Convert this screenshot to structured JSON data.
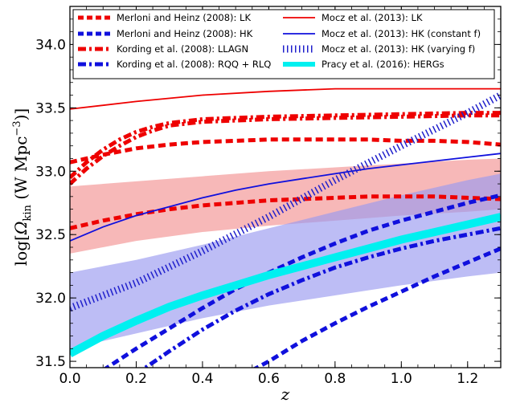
{
  "chart_data": {
    "type": "line",
    "xlabel": "z",
    "ylabel_parts": {
      "prefix": "log[",
      "symbol": "Ω",
      "sub": "kin",
      "mid": " (W Mpc",
      "sup": "−3",
      "suffix": ")]"
    },
    "xlim": [
      0.0,
      1.3
    ],
    "ylim": [
      31.45,
      34.3
    ],
    "x_ticks": [
      0.0,
      0.2,
      0.4,
      0.6,
      0.8,
      1.0,
      1.2
    ],
    "x_tick_labels": [
      "0.0",
      "0.2",
      "0.4",
      "0.6",
      "0.8",
      "1.0",
      "1.2"
    ],
    "y_ticks": [
      31.5,
      32.0,
      32.5,
      33.0,
      33.5,
      34.0
    ],
    "y_tick_labels": [
      "31.5",
      "32.0",
      "32.5",
      "33.0",
      "33.5",
      "34.0"
    ],
    "legend": {
      "left": [
        "Merloni and Heinz (2008): LK",
        "Merloni and Heinz (2008): HK",
        "Kording et al. (2008): LLAGN",
        "Kording et al. (2008): RQQ + RLQ"
      ],
      "right": [
        "Mocz et al. (2013): LK",
        "Mocz et al. (2013): HK (constant f)",
        "Mocz et al. (2013): HK (varying f)",
        "Pracy et al. (2016): HERGs"
      ]
    },
    "bands": [
      {
        "name": "red band",
        "color": "#f4a0a0",
        "opacity": 0.75,
        "x": [
          0.0,
          0.2,
          0.4,
          0.6,
          0.8,
          1.0,
          1.2,
          1.3
        ],
        "upper": [
          32.88,
          32.92,
          32.96,
          33.0,
          33.03,
          33.06,
          33.09,
          33.1
        ],
        "lower": [
          32.35,
          32.45,
          32.52,
          32.57,
          32.61,
          32.65,
          32.68,
          32.7
        ]
      },
      {
        "name": "blue band",
        "color": "#9a9af0",
        "opacity": 0.65,
        "x": [
          0.0,
          0.2,
          0.4,
          0.6,
          0.8,
          1.0,
          1.2,
          1.3
        ],
        "upper": [
          32.2,
          32.3,
          32.42,
          32.55,
          32.68,
          32.81,
          32.93,
          32.98
        ],
        "lower": [
          31.6,
          31.72,
          31.84,
          31.94,
          32.02,
          32.1,
          32.17,
          32.2
        ]
      }
    ],
    "series": [
      {
        "name": "Merloni and Heinz (2008): LK",
        "color": "#ee0000",
        "style": "dashed",
        "width": 5,
        "x": [
          0.0,
          0.1,
          0.2,
          0.3,
          0.4,
          0.5,
          0.6,
          0.7,
          0.8,
          0.9,
          1.0,
          1.1,
          1.2,
          1.3
        ],
        "y": [
          32.55,
          32.61,
          32.66,
          32.7,
          32.73,
          32.75,
          32.77,
          32.78,
          32.79,
          32.8,
          32.8,
          32.8,
          32.79,
          32.78
        ]
      },
      {
        "name": "Merloni and Heinz (2008): LK (upper)",
        "color": "#ee0000",
        "style": "dashed",
        "width": 5,
        "x": [
          0.0,
          0.1,
          0.2,
          0.3,
          0.4,
          0.5,
          0.6,
          0.7,
          0.8,
          0.9,
          1.0,
          1.1,
          1.2,
          1.3
        ],
        "y": [
          33.07,
          33.13,
          33.18,
          33.21,
          33.23,
          33.24,
          33.25,
          33.25,
          33.25,
          33.25,
          33.24,
          33.24,
          33.23,
          33.21
        ]
      },
      {
        "name": "Merloni and Heinz (2008): HK",
        "color": "#1010dd",
        "style": "dashed",
        "width": 5,
        "x": [
          0.1,
          0.2,
          0.3,
          0.4,
          0.5,
          0.6,
          0.7,
          0.8,
          0.9,
          1.0,
          1.1,
          1.2,
          1.3
        ],
        "y": [
          31.43,
          31.6,
          31.76,
          31.92,
          32.07,
          32.2,
          32.32,
          32.43,
          32.53,
          32.61,
          32.68,
          32.75,
          32.81
        ]
      },
      {
        "name": "Merloni and Heinz (2008): HK (lower)",
        "color": "#1010dd",
        "style": "dashed",
        "width": 5,
        "x": [
          0.55,
          0.6,
          0.7,
          0.8,
          0.9,
          1.0,
          1.1,
          1.2,
          1.3
        ],
        "y": [
          31.43,
          31.5,
          31.66,
          31.8,
          31.93,
          32.05,
          32.17,
          32.28,
          32.39
        ]
      },
      {
        "name": "Kording et al. (2008): LLAGN",
        "color": "#ee0000",
        "style": "dashdot",
        "width": 5,
        "x": [
          0.0,
          0.05,
          0.1,
          0.15,
          0.2,
          0.25,
          0.3,
          0.4,
          0.5,
          0.6,
          0.8,
          1.0,
          1.2,
          1.3
        ],
        "y": [
          32.9,
          33.02,
          33.12,
          33.2,
          33.27,
          33.32,
          33.36,
          33.39,
          33.4,
          33.41,
          33.42,
          33.43,
          33.44,
          33.44
        ]
      },
      {
        "name": "Kording et al. (2008): LLAGN (upper)",
        "color": "#ee0000",
        "style": "dashdot",
        "width": 5,
        "x": [
          0.0,
          0.05,
          0.1,
          0.15,
          0.2,
          0.25,
          0.3,
          0.4,
          0.5,
          0.6,
          0.8,
          1.0,
          1.2,
          1.3
        ],
        "y": [
          32.95,
          33.07,
          33.17,
          33.25,
          33.31,
          33.35,
          33.38,
          33.41,
          33.42,
          33.43,
          33.44,
          33.45,
          33.46,
          33.46
        ]
      },
      {
        "name": "Kording et al. (2008): RQQ + RLQ",
        "color": "#1010dd",
        "style": "dashdot",
        "width": 5,
        "x": [
          0.2,
          0.3,
          0.4,
          0.5,
          0.6,
          0.7,
          0.8,
          0.9,
          1.0,
          1.1,
          1.2,
          1.3
        ],
        "y": [
          31.4,
          31.58,
          31.75,
          31.9,
          32.03,
          32.14,
          32.24,
          32.32,
          32.39,
          32.45,
          32.5,
          32.55
        ]
      },
      {
        "name": "Mocz et al. (2013): LK",
        "color": "#ee0000",
        "style": "solid",
        "width": 1.8,
        "x": [
          0.0,
          0.2,
          0.4,
          0.6,
          0.8,
          1.0,
          1.2,
          1.3
        ],
        "y": [
          33.49,
          33.55,
          33.6,
          33.63,
          33.65,
          33.65,
          33.65,
          33.65
        ]
      },
      {
        "name": "Mocz et al. (2013): HK (constant f)",
        "color": "#1010dd",
        "style": "solid",
        "width": 1.8,
        "x": [
          0.0,
          0.1,
          0.2,
          0.3,
          0.4,
          0.5,
          0.6,
          0.7,
          0.8,
          0.9,
          1.0,
          1.1,
          1.2,
          1.3
        ],
        "y": [
          32.45,
          32.56,
          32.65,
          32.72,
          32.79,
          32.85,
          32.9,
          32.94,
          32.98,
          33.02,
          33.05,
          33.08,
          33.11,
          33.14
        ]
      },
      {
        "name": "Mocz et al. (2013): HK (varying f)",
        "color": "#2020cc",
        "style": "hatch",
        "width": 9,
        "x": [
          0.0,
          0.2,
          0.4,
          0.6,
          0.8,
          1.0,
          1.2,
          1.3
        ],
        "y": [
          31.92,
          32.12,
          32.37,
          32.64,
          32.93,
          33.2,
          33.46,
          33.6
        ]
      },
      {
        "name": "Pracy et al. (2016): HERGs",
        "color": "#00f0f0",
        "style": "solid",
        "width": 10,
        "x": [
          0.0,
          0.1,
          0.2,
          0.3,
          0.4,
          0.5,
          0.6,
          0.7,
          0.8,
          0.9,
          1.0,
          1.1,
          1.2,
          1.3
        ],
        "y": [
          31.56,
          31.7,
          31.82,
          31.93,
          32.02,
          32.1,
          32.18,
          32.25,
          32.32,
          32.39,
          32.46,
          32.52,
          32.58,
          32.64
        ]
      }
    ]
  }
}
